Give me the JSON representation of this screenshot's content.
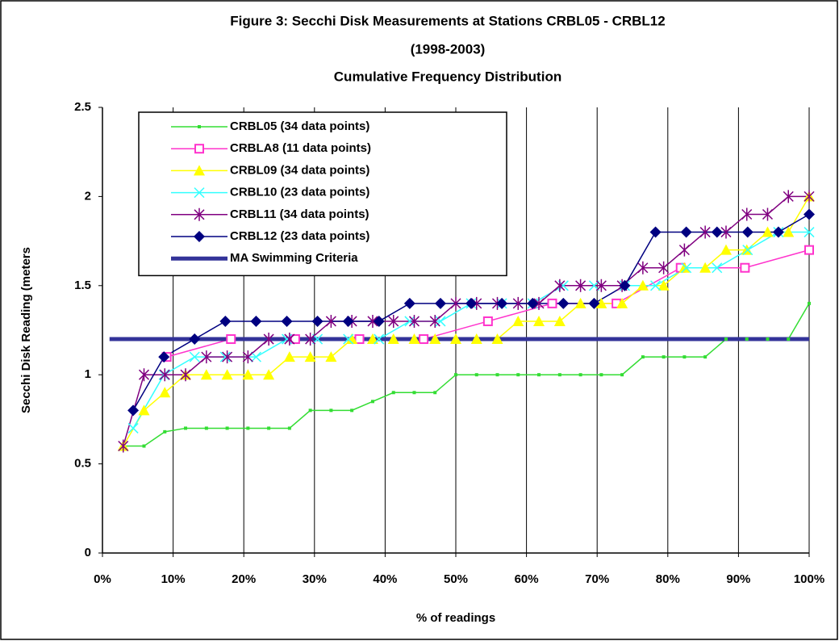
{
  "chart_data": {
    "type": "line",
    "title": [
      "Figure 3: Secchi Disk Measurements at Stations CRBL05 - CRBL12",
      "(1998-2003)",
      "Cumulative Frequency Distribution"
    ],
    "xlabel": "% of readings",
    "ylabel": "Secchi Disk Reading (meters",
    "xlim": [
      0,
      100
    ],
    "ylim": [
      0,
      2.5
    ],
    "xticks": [
      {
        "value": 0,
        "label": "0%"
      },
      {
        "value": 10,
        "label": "10%"
      },
      {
        "value": 20,
        "label": "20%"
      },
      {
        "value": 30,
        "label": "30%"
      },
      {
        "value": 40,
        "label": "40%"
      },
      {
        "value": 50,
        "label": "50%"
      },
      {
        "value": 60,
        "label": "60%"
      },
      {
        "value": 70,
        "label": "70%"
      },
      {
        "value": 80,
        "label": "80%"
      },
      {
        "value": 90,
        "label": "90%"
      },
      {
        "value": 100,
        "label": "100%"
      }
    ],
    "yticks": [
      0,
      0.5,
      1,
      1.5,
      2,
      2.5
    ],
    "grid": "x",
    "legend": "upper left",
    "series": [
      {
        "name": "CRBL05 (34 data points)",
        "color": "#33dd33",
        "marker": "small-square",
        "x": [
          2.94,
          5.88,
          8.82,
          11.76,
          14.71,
          17.65,
          20.59,
          23.53,
          26.47,
          29.41,
          32.35,
          35.29,
          38.24,
          41.18,
          44.12,
          47.06,
          50,
          52.94,
          55.88,
          58.82,
          61.76,
          64.71,
          67.65,
          70.59,
          73.53,
          76.47,
          79.41,
          82.35,
          85.29,
          88.24,
          91.18,
          94.12,
          97.06,
          100
        ],
        "values": [
          0.6,
          0.6,
          0.68,
          0.7,
          0.7,
          0.7,
          0.7,
          0.7,
          0.7,
          0.8,
          0.8,
          0.8,
          0.85,
          0.9,
          0.9,
          0.9,
          1,
          1,
          1,
          1,
          1,
          1,
          1,
          1,
          1,
          1.1,
          1.1,
          1.1,
          1.1,
          1.2,
          1.2,
          1.2,
          1.2,
          1.4
        ]
      },
      {
        "name": "CRBLA8 (11 data points)",
        "color": "#ff33cc",
        "marker": "square",
        "x": [
          9.09,
          18.18,
          27.27,
          36.36,
          45.45,
          54.55,
          63.64,
          72.73,
          81.82,
          90.91,
          100
        ],
        "values": [
          1.1,
          1.2,
          1.2,
          1.2,
          1.2,
          1.3,
          1.4,
          1.4,
          1.6,
          1.6,
          1.7
        ]
      },
      {
        "name": "CRBL09 (34 data points)",
        "color": "#ffff00",
        "marker": "triangle",
        "x": [
          2.94,
          5.88,
          8.82,
          11.76,
          14.71,
          17.65,
          20.59,
          23.53,
          26.47,
          29.41,
          32.35,
          35.29,
          38.24,
          41.18,
          44.12,
          47.06,
          50,
          52.94,
          55.88,
          58.82,
          61.76,
          64.71,
          67.65,
          70.59,
          73.53,
          76.47,
          79.41,
          82.35,
          85.29,
          88.24,
          91.18,
          94.12,
          97.06,
          100
        ],
        "values": [
          0.6,
          0.8,
          0.9,
          1,
          1,
          1,
          1,
          1,
          1.1,
          1.1,
          1.1,
          1.2,
          1.2,
          1.2,
          1.2,
          1.2,
          1.2,
          1.2,
          1.2,
          1.3,
          1.3,
          1.3,
          1.4,
          1.4,
          1.4,
          1.5,
          1.5,
          1.6,
          1.6,
          1.7,
          1.7,
          1.8,
          1.8,
          2
        ]
      },
      {
        "name": "CRBL10 (23 data points)",
        "color": "#33ffff",
        "marker": "x",
        "x": [
          4.35,
          8.7,
          13.04,
          17.39,
          21.74,
          26.09,
          30.43,
          34.78,
          39.13,
          43.48,
          47.83,
          52.17,
          56.52,
          60.87,
          65.22,
          69.57,
          73.91,
          78.26,
          82.61,
          86.96,
          91.3,
          95.65,
          100
        ],
        "values": [
          0.7,
          1,
          1.1,
          1.1,
          1.1,
          1.2,
          1.2,
          1.2,
          1.2,
          1.3,
          1.3,
          1.4,
          1.4,
          1.4,
          1.5,
          1.5,
          1.5,
          1.5,
          1.6,
          1.6,
          1.7,
          1.8,
          1.8
        ]
      },
      {
        "name": "CRBL11 (34 data points)",
        "color": "#800080",
        "marker": "asterisk",
        "x": [
          2.94,
          5.88,
          8.82,
          11.76,
          14.71,
          17.65,
          20.59,
          23.53,
          26.47,
          29.41,
          32.35,
          35.29,
          38.24,
          41.18,
          44.12,
          47.06,
          50,
          52.94,
          55.88,
          58.82,
          61.76,
          64.71,
          67.65,
          70.59,
          73.53,
          76.47,
          79.41,
          82.35,
          85.29,
          88.24,
          91.18,
          94.12,
          97.06,
          100
        ],
        "values": [
          0.6,
          1,
          1,
          1,
          1.1,
          1.1,
          1.1,
          1.2,
          1.2,
          1.2,
          1.3,
          1.3,
          1.3,
          1.3,
          1.3,
          1.3,
          1.4,
          1.4,
          1.4,
          1.4,
          1.4,
          1.5,
          1.5,
          1.5,
          1.5,
          1.6,
          1.6,
          1.7,
          1.8,
          1.8,
          1.9,
          1.9,
          2,
          2
        ]
      },
      {
        "name": "CRBL12 (23 data points)",
        "color": "#000080",
        "marker": "diamond",
        "x": [
          4.35,
          8.7,
          13.04,
          17.39,
          21.74,
          26.09,
          30.43,
          34.78,
          39.13,
          43.48,
          47.83,
          52.17,
          56.52,
          60.87,
          65.22,
          69.57,
          73.91,
          78.26,
          82.61,
          86.96,
          91.3,
          95.65,
          100
        ],
        "values": [
          0.8,
          1.1,
          1.2,
          1.3,
          1.3,
          1.3,
          1.3,
          1.3,
          1.3,
          1.4,
          1.4,
          1.4,
          1.4,
          1.4,
          1.4,
          1.4,
          1.5,
          1.8,
          1.8,
          1.8,
          1.8,
          1.8,
          1.9
        ]
      },
      {
        "name": "MA Swimming Criteria",
        "color": "#333399",
        "marker": "none",
        "width": 5,
        "x": [
          1,
          100
        ],
        "values": [
          1.2,
          1.2
        ]
      }
    ]
  }
}
